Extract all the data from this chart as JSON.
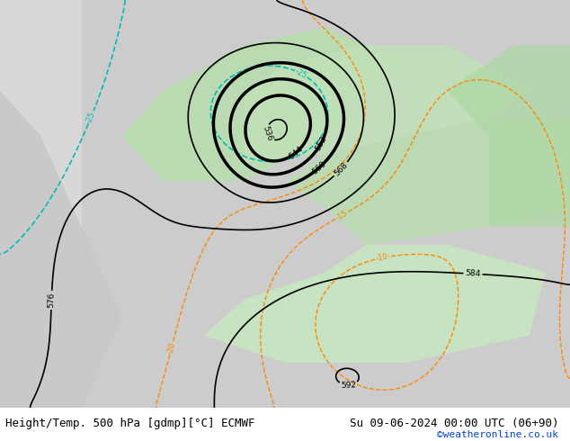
{
  "title_left": "Height/Temp. 500 hPa [gdmp][°C] ECMWF",
  "title_right": "Su 09-06-2024 00:00 UTC (06+90)",
  "title_right2": "©weatheronline.co.uk",
  "bg_color": "#d0d0d0",
  "land_color_green": "#c8e6c0",
  "land_color_gray": "#c0c0c0",
  "sea_color": "#e8e8e8",
  "contour_color_black": "#000000",
  "contour_color_orange": "#ff8800",
  "contour_color_red": "#ff0000",
  "contour_color_cyan": "#00cccc",
  "contour_color_green": "#44aa44",
  "label_fontsize": 7,
  "title_fontsize": 9,
  "credit_fontsize": 8,
  "figsize": [
    6.34,
    4.9
  ],
  "dpi": 100
}
